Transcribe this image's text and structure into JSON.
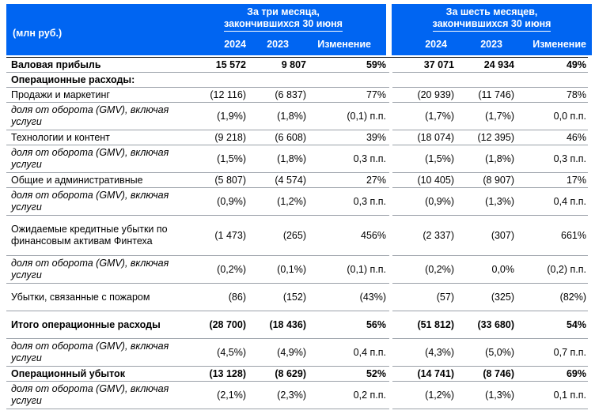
{
  "header": {
    "unit": "(млн руб.)",
    "period_three_line1": "За три месяца,",
    "period_three_line2": "закончившихся 30 июня",
    "period_six_line1": "За шесть месяцев,",
    "period_six_line2": "закончившихся 30 июня",
    "col_2024_a": "2024",
    "col_2023_a": "2023",
    "col_change_a": "Изменение",
    "col_2024_b": "2024",
    "col_2023_b": "2023",
    "col_change_b": "Изменение"
  },
  "rows": [
    {
      "label": "Валовая прибыль",
      "v": [
        "15 572",
        "9 807",
        "59%",
        "37 071",
        "24 934",
        "49%"
      ]
    },
    {
      "label": "Операционные расходы:",
      "v": [
        "",
        "",
        "",
        "",
        "",
        ""
      ]
    },
    {
      "label": "Продажи и маркетинг",
      "v": [
        "(12 116)",
        "(6 837)",
        "77%",
        "(20 939)",
        "(11 746)",
        "78%"
      ]
    },
    {
      "label": "доля от оборота (GMV), включая услуги",
      "v": [
        "(1,9%)",
        "(1,8%)",
        "(0,1) п.п.",
        "(1,7%)",
        "(1,7%)",
        "0,0 п.п."
      ]
    },
    {
      "label": "Технологии и контент",
      "v": [
        "(9 218)",
        "(6 608)",
        "39%",
        "(18 074)",
        "(12 395)",
        "46%"
      ]
    },
    {
      "label": "доля от оборота (GMV), включая услуги",
      "v": [
        "(1,5%)",
        "(1,8%)",
        "0,3 п.п.",
        "(1,5%)",
        "(1,8%)",
        "0,3 п.п."
      ]
    },
    {
      "label": "Общие и административные",
      "v": [
        "(5 807)",
        "(4 574)",
        "27%",
        "(10 405)",
        "(8 907)",
        "17%"
      ]
    },
    {
      "label": "доля от оборота (GMV), включая услуги",
      "v": [
        "(0,9%)",
        "(1,2%)",
        "0,3 п.п.",
        "(0,9%)",
        "(1,3%)",
        "0,4 п.п."
      ]
    },
    {
      "label": "Ожидаемые кредитные убытки по финансовым активам Финтеха",
      "v": [
        "(1 473)",
        "(265)",
        "456%",
        "(2 337)",
        "(307)",
        "661%"
      ]
    },
    {
      "label": "доля от оборота (GMV), включая услуги",
      "v": [
        "(0,2%)",
        "(0,1%)",
        "(0,1) п.п.",
        "(0,2%)",
        "0,0%",
        "(0,2) п.п."
      ]
    },
    {
      "label": "Убытки, связанные с пожаром",
      "v": [
        "(86)",
        "(152)",
        "(43%)",
        "(57)",
        "(325)",
        "(82%)"
      ]
    },
    {
      "label": "Итого операционные расходы",
      "v": [
        "(28 700)",
        "(18 436)",
        "56%",
        "(51 812)",
        "(33 680)",
        "54%"
      ]
    },
    {
      "label": "доля от оборота (GMV), включая услуги",
      "v": [
        "(4,5%)",
        "(4,9%)",
        "0,4 п.п.",
        "(4,3%)",
        "(5,0%)",
        "0,7 п.п."
      ]
    },
    {
      "label": "Операционный убыток",
      "v": [
        "(13 128)",
        "(8 629)",
        "52%",
        "(14 741)",
        "(8 746)",
        "69%"
      ]
    },
    {
      "label": "доля от оборота (GMV), включая услуги",
      "v": [
        "(2,1%)",
        "(2,3%)",
        "0,2 п.п.",
        "(1,2%)",
        "(1,3%)",
        "0,1 п.п."
      ]
    }
  ],
  "colors": {
    "header_bg": "#0065f2",
    "header_text": "#ffffff"
  }
}
